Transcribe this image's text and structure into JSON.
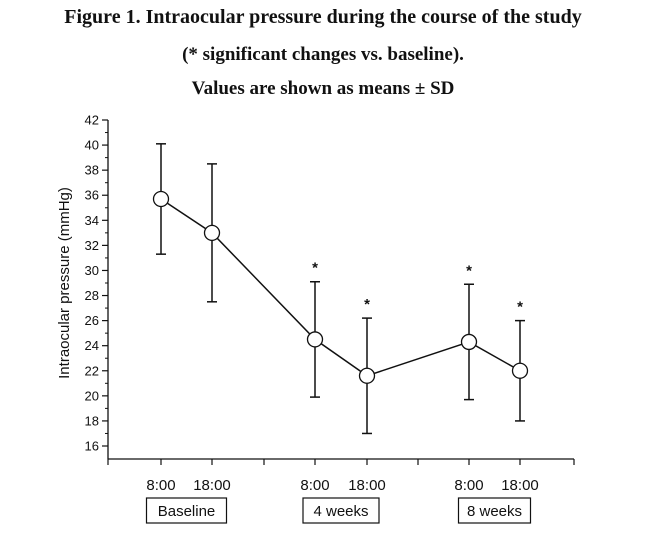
{
  "title_lines": [
    "Figure 1. Intraocular pressure during the course of the study",
    "(* significant changes vs. baseline).",
    "Values are shown as means ± SD"
  ],
  "chart_data": {
    "type": "line",
    "ylabel": "Intraocular pressure (mmHg)",
    "ylim": [
      15,
      42
    ],
    "yticks": [
      16,
      18,
      20,
      22,
      24,
      26,
      28,
      30,
      32,
      34,
      36,
      38,
      40,
      42
    ],
    "x": [
      "8:00",
      "18:00",
      "8:00",
      "18:00",
      "8:00",
      "18:00"
    ],
    "groups": [
      "Baseline",
      "4 weeks",
      "8 weeks"
    ],
    "means": [
      35.7,
      33.0,
      24.5,
      21.6,
      24.3,
      22.0
    ],
    "sd": [
      4.4,
      5.5,
      4.6,
      4.6,
      4.6,
      4.0
    ],
    "significant": [
      false,
      false,
      true,
      true,
      true,
      true
    ],
    "significance_marker": "*",
    "grid": false
  }
}
